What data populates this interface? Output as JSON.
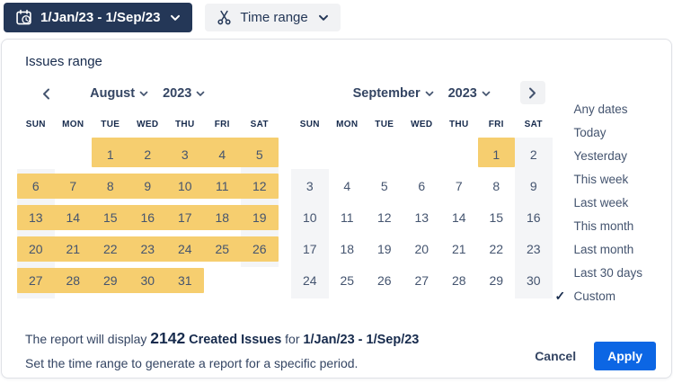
{
  "toolbar": {
    "date_button_label": "1/Jan/23 - 1/Sep/23",
    "time_range_label": "Time range"
  },
  "panel": {
    "title": "Issues range",
    "weekdays": [
      "SUN",
      "MON",
      "TUE",
      "WED",
      "THU",
      "FRI",
      "SAT"
    ],
    "calendars": [
      {
        "month": "August",
        "year": "2023",
        "first_day_col": 2,
        "num_days": 31,
        "selected_from": 1,
        "selected_to": 31
      },
      {
        "month": "September",
        "year": "2023",
        "first_day_col": 5,
        "num_days": 30,
        "selected_from": 1,
        "selected_to": 1
      }
    ],
    "presets": {
      "items": [
        "Any dates",
        "Today",
        "Yesterday",
        "This week",
        "Last week",
        "This month",
        "Last month",
        "Last 30 days",
        "Custom"
      ],
      "selected": "Custom",
      "check_glyph": "✓"
    },
    "summary": {
      "prefix": "The report will display",
      "count": "2142",
      "metric": "Created Issues",
      "connector": "for",
      "range": "1/Jan/23 - 1/Sep/23",
      "hint": "Set the time range to generate a report for a specific period."
    },
    "actions": {
      "cancel": "Cancel",
      "apply": "Apply"
    }
  },
  "icons": {
    "date_button_icon": "calendar-clock-icon",
    "time_range_icon": "scissors-icon",
    "prev_icon": "chevron-left-icon",
    "next_icon": "chevron-right-icon"
  },
  "colors": {
    "navy": "#243757",
    "heading_navy": "#172B4D",
    "text_slate": "#44546F",
    "highlight_yellow": "#F6CE6F",
    "weekend_gray": "#F4F5F7",
    "button_gray": "#F1F2F4",
    "apply_blue": "#0C66E4",
    "border": "#DFE1E6"
  }
}
